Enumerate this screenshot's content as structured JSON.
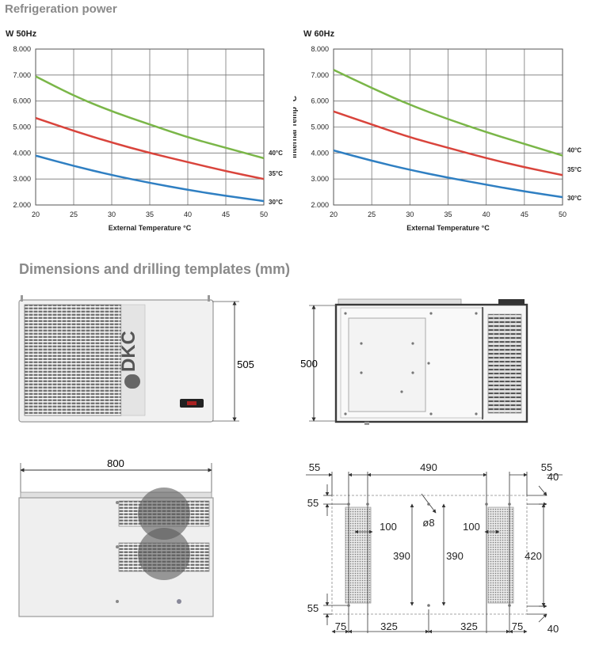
{
  "headings": {
    "refrigeration": "Refrigeration power",
    "dimensions": "Dimensions and drilling templates (mm)"
  },
  "chart_data": [
    {
      "type": "line",
      "title": "W 50Hz",
      "xlabel": "External Temperature °C",
      "ylabel": "",
      "x": [
        20,
        25,
        30,
        35,
        40,
        45,
        50
      ],
      "xlim": [
        20,
        50
      ],
      "ylim": [
        2000,
        8000
      ],
      "y_ticks": [
        "2.000",
        "3.000",
        "4.000",
        "5.000",
        "6.000",
        "7.000",
        "8.000"
      ],
      "x_ticks": [
        "20",
        "25",
        "30",
        "35",
        "40",
        "45",
        "50"
      ],
      "grid": true,
      "series": [
        {
          "name": "40°C",
          "color": "#7ab648",
          "values": [
            6950,
            6200,
            5600,
            5100,
            4600,
            4200,
            3800
          ]
        },
        {
          "name": "35°C",
          "color": "#d9443c",
          "values": [
            5350,
            4850,
            4400,
            4000,
            3650,
            3300,
            3000
          ]
        },
        {
          "name": "30°C",
          "color": "#2f7fc2",
          "values": [
            3900,
            3500,
            3150,
            2850,
            2580,
            2350,
            2150
          ]
        }
      ]
    },
    {
      "type": "line",
      "title": "W 60Hz",
      "xlabel": "External Temperature °C",
      "ylabel": "Internal Temp °C",
      "x": [
        20,
        25,
        30,
        35,
        40,
        45,
        50
      ],
      "xlim": [
        20,
        50
      ],
      "ylim": [
        2000,
        8000
      ],
      "y_ticks": [
        "2.000",
        "3.000",
        "4.000",
        "5.000",
        "6.000",
        "7.000",
        "8.000"
      ],
      "x_ticks": [
        "20",
        "25",
        "30",
        "35",
        "40",
        "45",
        "50"
      ],
      "grid": true,
      "series": [
        {
          "name": "40°C",
          "color": "#7ab648",
          "values": [
            7200,
            6500,
            5850,
            5300,
            4800,
            4350,
            3900
          ]
        },
        {
          "name": "35°C",
          "color": "#d9443c",
          "values": [
            5600,
            5100,
            4600,
            4200,
            3800,
            3450,
            3150
          ]
        },
        {
          "name": "30°C",
          "color": "#2f7fc2",
          "values": [
            4100,
            3700,
            3350,
            3050,
            2780,
            2520,
            2300
          ]
        }
      ]
    }
  ],
  "drawings": {
    "front": {
      "brand": "DKC",
      "height_dim": "505"
    },
    "back": {
      "height_dim": "500"
    },
    "top": {
      "width_dim": "800"
    },
    "template": {
      "d55_top_left": "55",
      "d490": "490",
      "d55_top_right": "55",
      "d40_top": "40",
      "d55_left": "55",
      "d100_left": "100",
      "d100_right": "100",
      "hole": "ø8",
      "d390_left": "390",
      "d390_right": "390",
      "d420": "420",
      "d55_bottom": "55",
      "d75_left": "75",
      "d325_left": "325",
      "d325_right": "325",
      "d75_right": "75",
      "d40_bottom": "40"
    }
  }
}
